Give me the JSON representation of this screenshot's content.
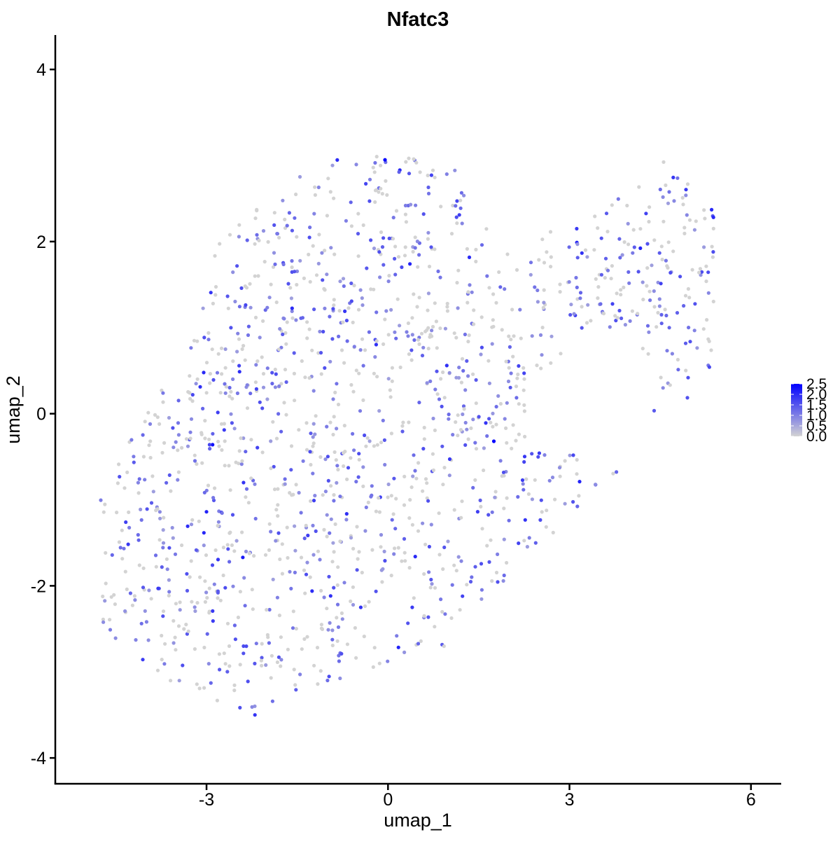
{
  "chart_data": {
    "type": "scatter",
    "title": "Nfatc3",
    "xlabel": "umap_1",
    "ylabel": "umap_2",
    "xlim": [
      -5.5,
      6.5
    ],
    "ylim": [
      -4.3,
      4.4
    ],
    "xticks": [
      -3,
      0,
      3,
      6
    ],
    "yticks": [
      -4,
      -2,
      0,
      2,
      4
    ],
    "xtick_labels": [
      "-3",
      "0",
      "3",
      "6"
    ],
    "ytick_labels": [
      "-4",
      "-2",
      "0",
      "2",
      "4"
    ],
    "grid": false,
    "legend": {
      "placement": "right",
      "labels": [
        "2.5",
        "2.0",
        "1.5",
        "1.0",
        "0.5",
        "0.0"
      ],
      "min": 0.0,
      "max": 2.5
    },
    "colors": {
      "low": "#d3d3d3",
      "high": "#0000ff",
      "axis": "#000000"
    },
    "point_count": 1500,
    "highlighted_points": [
      {
        "x": -0.05,
        "y": 2.95,
        "value": 2.5
      },
      {
        "x": 1.75,
        "y": -0.32,
        "value": 2.5
      },
      {
        "x": -2.9,
        "y": -0.36,
        "value": 2.3
      },
      {
        "x": -2.4,
        "y": -1.67,
        "value": 2.2
      },
      {
        "x": -3.0,
        "y": -1.14,
        "value": 2.1
      },
      {
        "x": 5.35,
        "y": 2.37,
        "value": 2.0
      },
      {
        "x": 0.45,
        "y": -1.66,
        "value": 2.0
      },
      {
        "x": -0.45,
        "y": -2.25,
        "value": 1.9
      },
      {
        "x": -2.2,
        "y": -3.5,
        "value": 1.9
      },
      {
        "x": 0.4,
        "y": -2.25,
        "value": 1.8
      },
      {
        "x": -3.8,
        "y": -2.03,
        "value": 1.8
      },
      {
        "x": 2.25,
        "y": 0.47,
        "value": 1.7
      },
      {
        "x": 2.25,
        "y": -0.56,
        "value": 1.7
      },
      {
        "x": -2.95,
        "y": -0.36,
        "value": 1.7
      }
    ]
  }
}
